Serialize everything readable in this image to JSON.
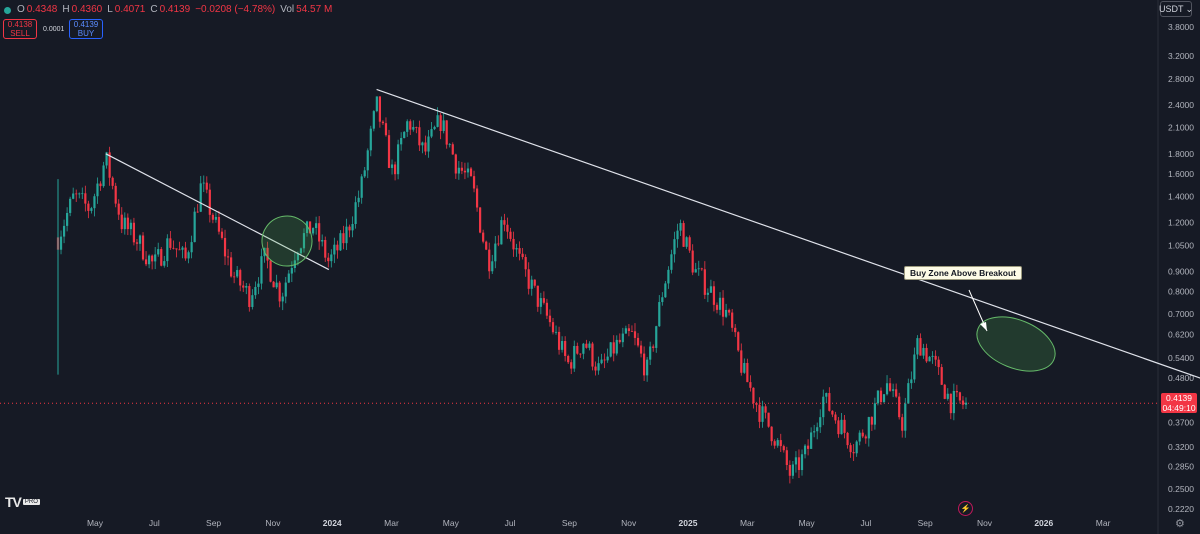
{
  "ohlc": {
    "O": "0.4348",
    "H": "0.4360",
    "L": "0.4071",
    "C": "0.4139",
    "change": "−0.0208 (−4.78%)",
    "vol_label": "Vol",
    "vol_value": "54.57 M"
  },
  "trade": {
    "sell_price": "0.4138",
    "sell_label": "SELL",
    "spread": "0.0001",
    "buy_price": "0.4139",
    "buy_label": "BUY"
  },
  "currency": "USDT",
  "price_tag": {
    "price": "0.4139",
    "countdown": "04:49:10"
  },
  "annotation": "Buy Zone Above Breakout",
  "logo": {
    "text": "TV",
    "badge": "PRO"
  },
  "colors": {
    "up": "#26a69a",
    "down": "#f23645",
    "line": "#e0e3eb",
    "zone": "#4caf50"
  },
  "chart_data": {
    "type": "candlestick",
    "y_scale": "log",
    "ylim": [
      0.222,
      4.3
    ],
    "y_ticks": [
      "3.8000",
      "3.2000",
      "2.8000",
      "2.4000",
      "2.1000",
      "1.8000",
      "1.6000",
      "1.4000",
      "1.2000",
      "1.0500",
      "0.9000",
      "0.8000",
      "0.7000",
      "0.6200",
      "0.5400",
      "0.4800",
      "0.3700",
      "0.3200",
      "0.2850",
      "0.2500",
      "0.2220"
    ],
    "x_ticks": [
      "May",
      "Jul",
      "Sep",
      "Nov",
      "2024",
      "Mar",
      "May",
      "Jul",
      "Sep",
      "Nov",
      "2025",
      "Mar",
      "May",
      "Jul",
      "Sep",
      "Nov",
      "2026",
      "Mar"
    ],
    "current_price": 0.4139,
    "path": [
      [
        0,
        1.1
      ],
      [
        1,
        1.4
      ],
      [
        2,
        1.3
      ],
      [
        3,
        1.75
      ],
      [
        4,
        1.2
      ],
      [
        5,
        1.08
      ],
      [
        6,
        0.93
      ],
      [
        7,
        1.08
      ],
      [
        8,
        0.96
      ],
      [
        9,
        1.5
      ],
      [
        10,
        1.15
      ],
      [
        11,
        0.88
      ],
      [
        12,
        0.78
      ],
      [
        13,
        0.98
      ],
      [
        14,
        0.78
      ],
      [
        15,
        1.05
      ],
      [
        16,
        1.18
      ],
      [
        17,
        0.95
      ],
      [
        18,
        1.1
      ],
      [
        19,
        1.45
      ],
      [
        20,
        2.4
      ],
      [
        21,
        1.6
      ],
      [
        22,
        2.2
      ],
      [
        23,
        1.8
      ],
      [
        24,
        2.2
      ],
      [
        25,
        1.7
      ],
      [
        26,
        1.5
      ],
      [
        27,
        0.95
      ],
      [
        28,
        1.25
      ],
      [
        29,
        0.95
      ],
      [
        30,
        0.78
      ],
      [
        31,
        0.65
      ],
      [
        32,
        0.52
      ],
      [
        33,
        0.6
      ],
      [
        34,
        0.5
      ],
      [
        35,
        0.58
      ],
      [
        36,
        0.62
      ],
      [
        37,
        0.5
      ],
      [
        38,
        0.82
      ],
      [
        39,
        1.2
      ],
      [
        40,
        0.9
      ],
      [
        41,
        0.8
      ],
      [
        42,
        0.7
      ],
      [
        43,
        0.5
      ],
      [
        44,
        0.4
      ],
      [
        45,
        0.34
      ],
      [
        46,
        0.27
      ],
      [
        47,
        0.31
      ],
      [
        48,
        0.43
      ],
      [
        49,
        0.37
      ],
      [
        50,
        0.32
      ],
      [
        51,
        0.38
      ],
      [
        52,
        0.47
      ],
      [
        53,
        0.37
      ],
      [
        54,
        0.6
      ],
      [
        55,
        0.52
      ],
      [
        56,
        0.42
      ],
      [
        57,
        0.41
      ]
    ],
    "trendlines": [
      {
        "from": [
          3,
          1.8
        ],
        "to": [
          17,
          0.91
        ]
      },
      {
        "from": [
          20,
          2.63
        ],
        "to": [
          73,
          0.46
        ]
      }
    ]
  }
}
